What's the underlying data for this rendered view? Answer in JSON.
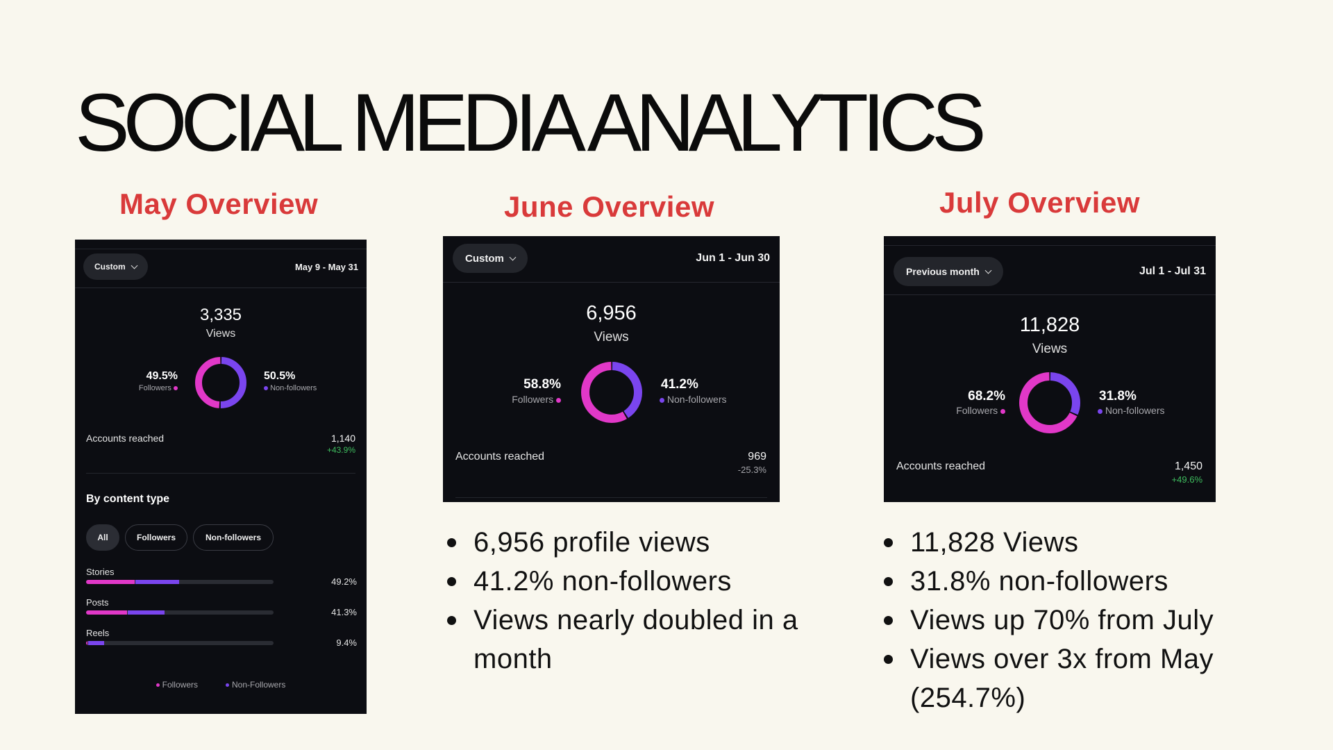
{
  "title": "SOCIAL MEDIA ANALYTICS",
  "colors": {
    "background": "#f9f7ee",
    "heading": "#d93a3a",
    "panel": "#0c0d12",
    "followers": "#e138c8",
    "non_followers": "#7a45ee",
    "positive": "#3fbe5f"
  },
  "may": {
    "heading": "May Overview",
    "filter": "Custom",
    "range": "May 9 - May 31",
    "views": "3,335",
    "views_label": "Views",
    "followers_pct": "49.5%",
    "followers_label": "Followers",
    "non_followers_pct": "50.5%",
    "non_followers_label": "Non-followers",
    "followers_share": 0.495,
    "accounts_reached_label": "Accounts reached",
    "accounts_reached": "1,140",
    "accounts_change": "+43.9%",
    "content_type_title": "By content type",
    "chips": [
      "All",
      "Followers",
      "Non-followers"
    ],
    "bars": [
      {
        "label": "Stories",
        "value": "49.2%",
        "total": 0.492,
        "followers": 0.26
      },
      {
        "label": "Posts",
        "value": "41.3%",
        "total": 0.413,
        "followers": 0.22
      },
      {
        "label": "Reels",
        "value": "9.4%",
        "total": 0.094,
        "followers": 0.008
      }
    ],
    "legend_followers": "Followers",
    "legend_non_followers": "Non-Followers"
  },
  "june": {
    "heading": "June Overview",
    "filter": "Custom",
    "range": "Jun 1 - Jun 30",
    "views": "6,956",
    "views_label": "Views",
    "followers_pct": "58.8%",
    "followers_label": "Followers",
    "non_followers_pct": "41.2%",
    "non_followers_label": "Non-followers",
    "followers_share": 0.588,
    "accounts_reached_label": "Accounts reached",
    "accounts_reached": "969",
    "accounts_change": "-25.3%",
    "bullets": [
      "6,956 profile views",
      "41.2% non-followers",
      "Views nearly doubled in a month"
    ]
  },
  "july": {
    "heading": "July Overview",
    "filter": "Previous month",
    "range": "Jul 1 - Jul 31",
    "views": "11,828",
    "views_label": "Views",
    "followers_pct": "68.2%",
    "followers_label": "Followers",
    "non_followers_pct": "31.8%",
    "non_followers_label": "Non-followers",
    "followers_share": 0.682,
    "accounts_reached_label": "Accounts reached",
    "accounts_reached": "1,450",
    "accounts_change": "+49.6%",
    "bullets": [
      "11,828 Views",
      "31.8% non-followers",
      "Views up 70% from July",
      "Views over 3x from May (254.7%)"
    ]
  },
  "icons": {
    "dropdown": "chevron-down-icon"
  }
}
